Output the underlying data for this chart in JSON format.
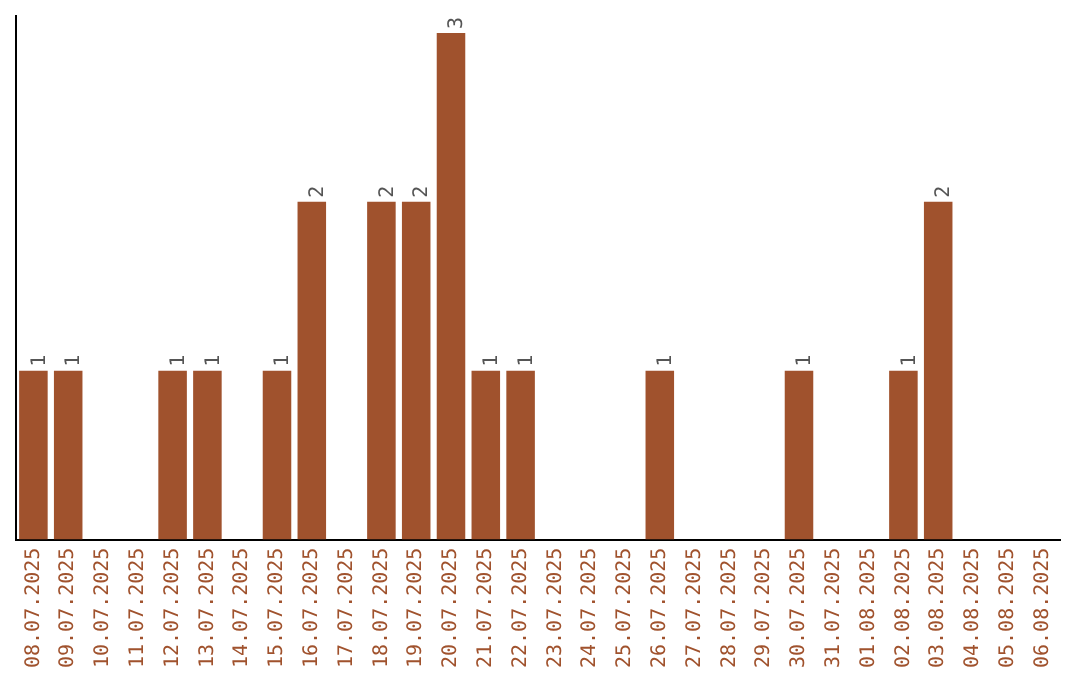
{
  "chart_data": {
    "type": "bar",
    "categories": [
      "08.07.2025",
      "09.07.2025",
      "10.07.2025",
      "11.07.2025",
      "12.07.2025",
      "13.07.2025",
      "14.07.2025",
      "15.07.2025",
      "16.07.2025",
      "17.07.2025",
      "18.07.2025",
      "19.07.2025",
      "20.07.2025",
      "21.07.2025",
      "22.07.2025",
      "23.07.2025",
      "24.07.2025",
      "25.07.2025",
      "26.07.2025",
      "27.07.2025",
      "28.07.2025",
      "29.07.2025",
      "30.07.2025",
      "31.07.2025",
      "01.08.2025",
      "02.08.2025",
      "03.08.2025",
      "04.08.2025",
      "05.08.2025",
      "06.08.2025"
    ],
    "values": [
      1,
      1,
      0,
      0,
      1,
      1,
      0,
      1,
      2,
      0,
      2,
      2,
      3,
      1,
      1,
      0,
      0,
      0,
      1,
      0,
      0,
      0,
      1,
      0,
      0,
      1,
      2,
      0,
      0,
      0
    ],
    "value_labels": [
      "1",
      "1",
      null,
      null,
      "1",
      "1",
      null,
      "1",
      "2",
      null,
      "2",
      "2",
      "3",
      "1",
      "1",
      null,
      null,
      null,
      "1",
      null,
      null,
      null,
      "1",
      null,
      null,
      "1",
      "2",
      null,
      null,
      null
    ],
    "color": "#a0522d",
    "ylim": [
      0,
      3.1
    ],
    "tick_labels": "x",
    "grid": false,
    "legend": false
  }
}
